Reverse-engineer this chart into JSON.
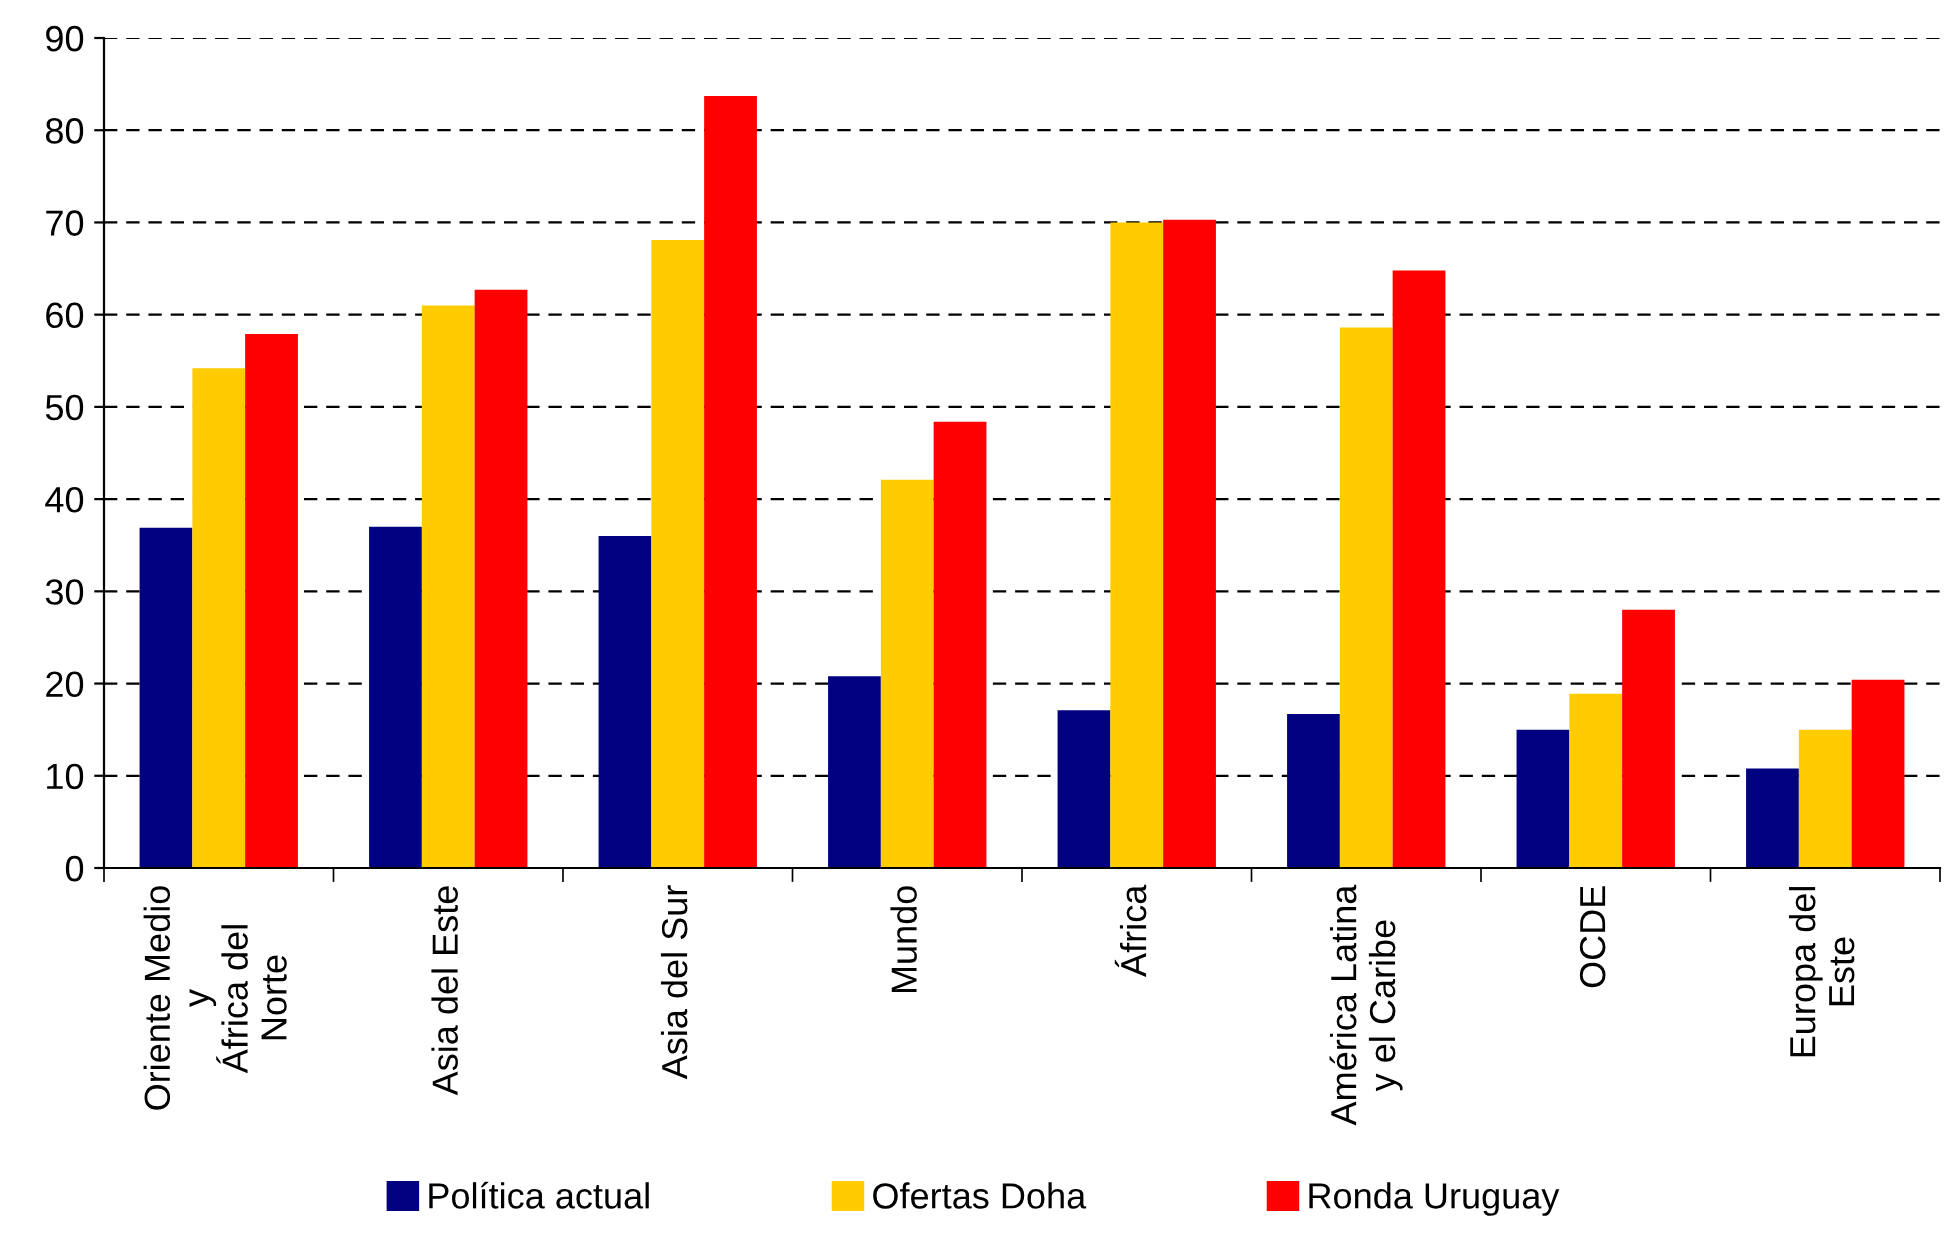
{
  "chart_data": {
    "type": "bar",
    "categories": [
      "Oriente Medio\ny\nÁfrica del\nNorte",
      "Asia del Este",
      "Asia del Sur",
      "Mundo",
      "África",
      "América Latina\ny el Caribe",
      "OCDE",
      "Europa del\nEste"
    ],
    "series": [
      {
        "name": "Política actual",
        "color": "#000080",
        "values": [
          36.9,
          37,
          36,
          20.8,
          17.1,
          16.7,
          15,
          10.8
        ]
      },
      {
        "name": "Ofertas Doha",
        "color": "#ffcc00",
        "values": [
          54.2,
          61,
          68.1,
          42.1,
          70,
          58.6,
          18.9,
          15
        ]
      },
      {
        "name": "Ronda Uruguay",
        "color": "#ff0000",
        "values": [
          57.9,
          62.7,
          83.7,
          48.4,
          70.3,
          64.8,
          28,
          20.4
        ]
      }
    ],
    "ylim": [
      0,
      90
    ],
    "yticks": [
      0,
      10,
      20,
      30,
      40,
      50,
      60,
      70,
      80,
      90
    ],
    "grid": "y",
    "legend": "bottom"
  }
}
